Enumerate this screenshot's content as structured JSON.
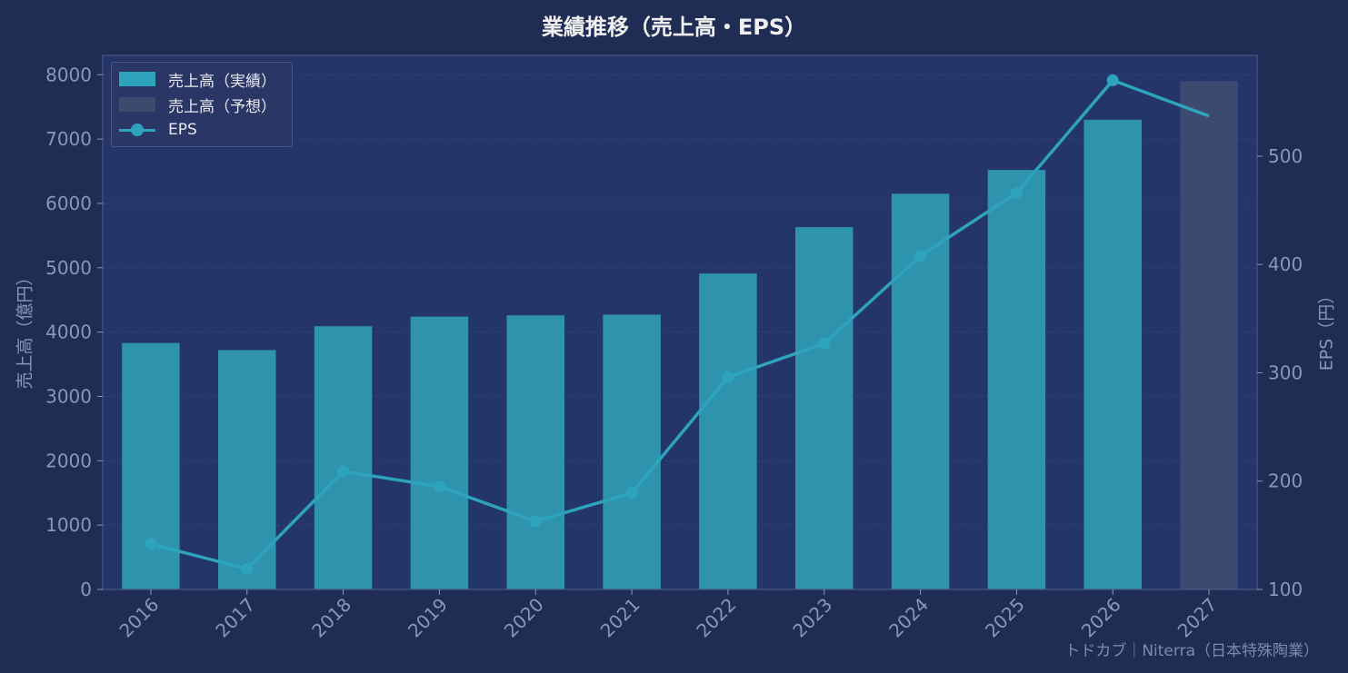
{
  "chart_data": {
    "type": "bar+line",
    "title": "業績推移（売上高・EPS）",
    "categories": [
      "2016",
      "2017",
      "2018",
      "2019",
      "2020",
      "2021",
      "2022",
      "2023",
      "2024",
      "2025",
      "2026",
      "2027"
    ],
    "series": [
      {
        "name": "売上高（実績）",
        "type": "bar",
        "axis": "left",
        "color": "#2e94ae",
        "values": [
          3830,
          3720,
          4090,
          4240,
          4260,
          4270,
          4910,
          5630,
          6150,
          6520,
          7300,
          null
        ]
      },
      {
        "name": "売上高（予想）",
        "type": "bar",
        "axis": "left",
        "color": "#3b4a6e",
        "values": [
          null,
          null,
          null,
          null,
          null,
          null,
          null,
          null,
          null,
          null,
          null,
          7900
        ]
      },
      {
        "name": "EPS",
        "type": "line",
        "axis": "right",
        "color": "#2ea4bc",
        "values": [
          142,
          119,
          209,
          195,
          163,
          189,
          296,
          327,
          408,
          466,
          570,
          537
        ]
      }
    ],
    "ylabel": "売上高（億円）",
    "y2label": "EPS（円）",
    "ylim": [
      0,
      8300
    ],
    "y2lim": [
      100,
      593
    ],
    "yticks": [
      0,
      1000,
      2000,
      3000,
      4000,
      5000,
      6000,
      7000,
      8000
    ],
    "y2ticks": [
      100,
      200,
      300,
      400,
      500
    ],
    "grid": true,
    "legend": "top-left"
  },
  "watermark": "トドカブ｜Niterra（日本特殊陶業）",
  "colors": {
    "background": "#1f2d54",
    "plot_bg": "#243569",
    "actual": "#2e94ae",
    "forecast": "#3b4a6e",
    "eps": "#2ea4bc",
    "axis_text": "#8a96b4"
  }
}
